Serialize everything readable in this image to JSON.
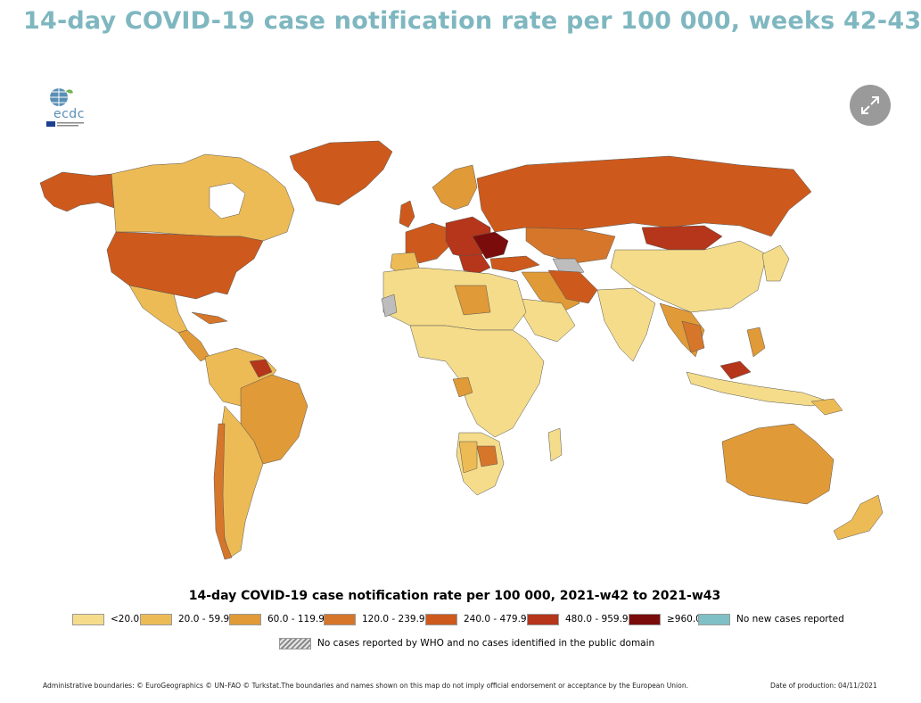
{
  "title": "14-day COVID-19 case notification rate per 100 000, weeks 42-43",
  "logo": {
    "text": "ecdc"
  },
  "expand_button": {
    "icon": "expand-icon"
  },
  "colors": {
    "title": "#7fb7c0",
    "c1": "#f5dc8a",
    "c2": "#edbb55",
    "c3": "#e09a37",
    "c4": "#d6762a",
    "c5": "#cd5a1c",
    "c6": "#b5361a",
    "c7": "#7a0c0c",
    "c8": "#7fbfc6"
  },
  "legend": {
    "title": "14-day COVID-19 case notification rate per 100 000, 2021-w42 to 2021-w43",
    "items": [
      {
        "label": "<20.0",
        "color": "#f5dc8a"
      },
      {
        "label": "20.0 - 59.9",
        "color": "#edbb55"
      },
      {
        "label": "60.0 - 119.9",
        "color": "#e09a37"
      },
      {
        "label": "120.0 - 239.9",
        "color": "#d6762a"
      },
      {
        "label": "240.0 - 479.9",
        "color": "#cd5a1c"
      },
      {
        "label": "480.0 - 959.9",
        "color": "#b5361a"
      },
      {
        "label": "≥960.0",
        "color": "#7a0c0c"
      },
      {
        "label": "No new cases reported",
        "color": "#7fbfc6"
      }
    ],
    "hatch_label": "No cases reported by WHO and no cases identified in the public domain"
  },
  "footer": {
    "boundaries": "Administrative boundaries: © EuroGeographics © UN–FAO © Turkstat.The boundaries and names shown on this map do not imply official endorsement or acceptance by the European Union.",
    "date": "Date of production: 04/11/2021"
  }
}
